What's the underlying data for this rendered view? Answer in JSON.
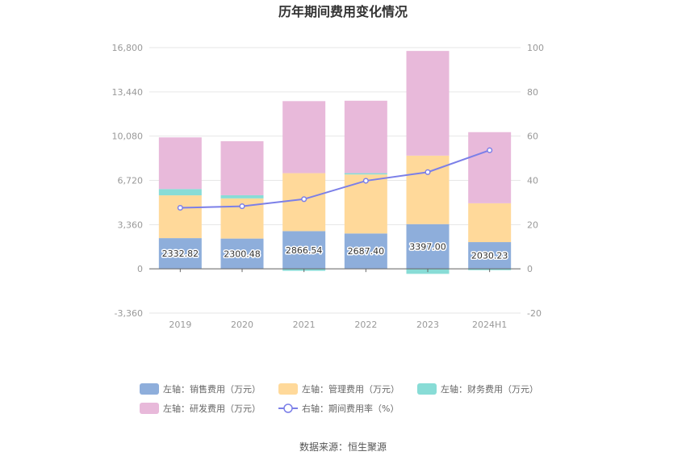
{
  "chart_data": {
    "type": "bar",
    "title": "历年期间费用变化情况",
    "categories": [
      "2019",
      "2020",
      "2021",
      "2022",
      "2023",
      "2024H1"
    ],
    "series": [
      {
        "name": "左轴：销售费用（万元）",
        "type": "bar",
        "axis": "left",
        "stack": "cost",
        "color": "#8eaedb",
        "values": [
          2332.82,
          2300.48,
          2866.54,
          2687.4,
          3397.0,
          2030.23
        ]
      },
      {
        "name": "左轴：管理费用（万元）",
        "type": "bar",
        "axis": "left",
        "stack": "cost",
        "color": "#ffd99a",
        "values": [
          3250,
          3050,
          4400,
          4480,
          5200,
          2950
        ]
      },
      {
        "name": "左轴：财务费用（万元）",
        "type": "bar",
        "axis": "left",
        "stack": "cost",
        "color": "#88dcd6",
        "values": [
          480,
          240,
          -150,
          100,
          -380,
          -100
        ]
      },
      {
        "name": "左轴：研发费用（万元）",
        "type": "bar",
        "axis": "left",
        "stack": "cost",
        "color": "#e8b9da",
        "values": [
          3920,
          4100,
          5470,
          5500,
          7950,
          5400
        ]
      },
      {
        "name": "右轴：期间费用率（%）",
        "type": "line",
        "axis": "right",
        "color": "#7b7fe8",
        "values": [
          27.6,
          28.3,
          31.5,
          39.8,
          43.7,
          53.6
        ]
      }
    ],
    "y_left": {
      "min": -3360,
      "max": 16800,
      "ticks": [
        "-3,360",
        "0",
        "3,360",
        "6,720",
        "10,080",
        "13,440",
        "16,800"
      ]
    },
    "y_right": {
      "min": -20,
      "max": 100,
      "ticks": [
        "-20",
        "0",
        "20",
        "40",
        "60",
        "80",
        "100"
      ]
    },
    "bar_labels_series": 0,
    "bar_labels": [
      "2332.82",
      "2300.48",
      "2866.54",
      "2687.40",
      "3397.00",
      "2030.23"
    ],
    "grid": true,
    "legend_position": "bottom"
  },
  "source": "数据来源：恒生聚源"
}
